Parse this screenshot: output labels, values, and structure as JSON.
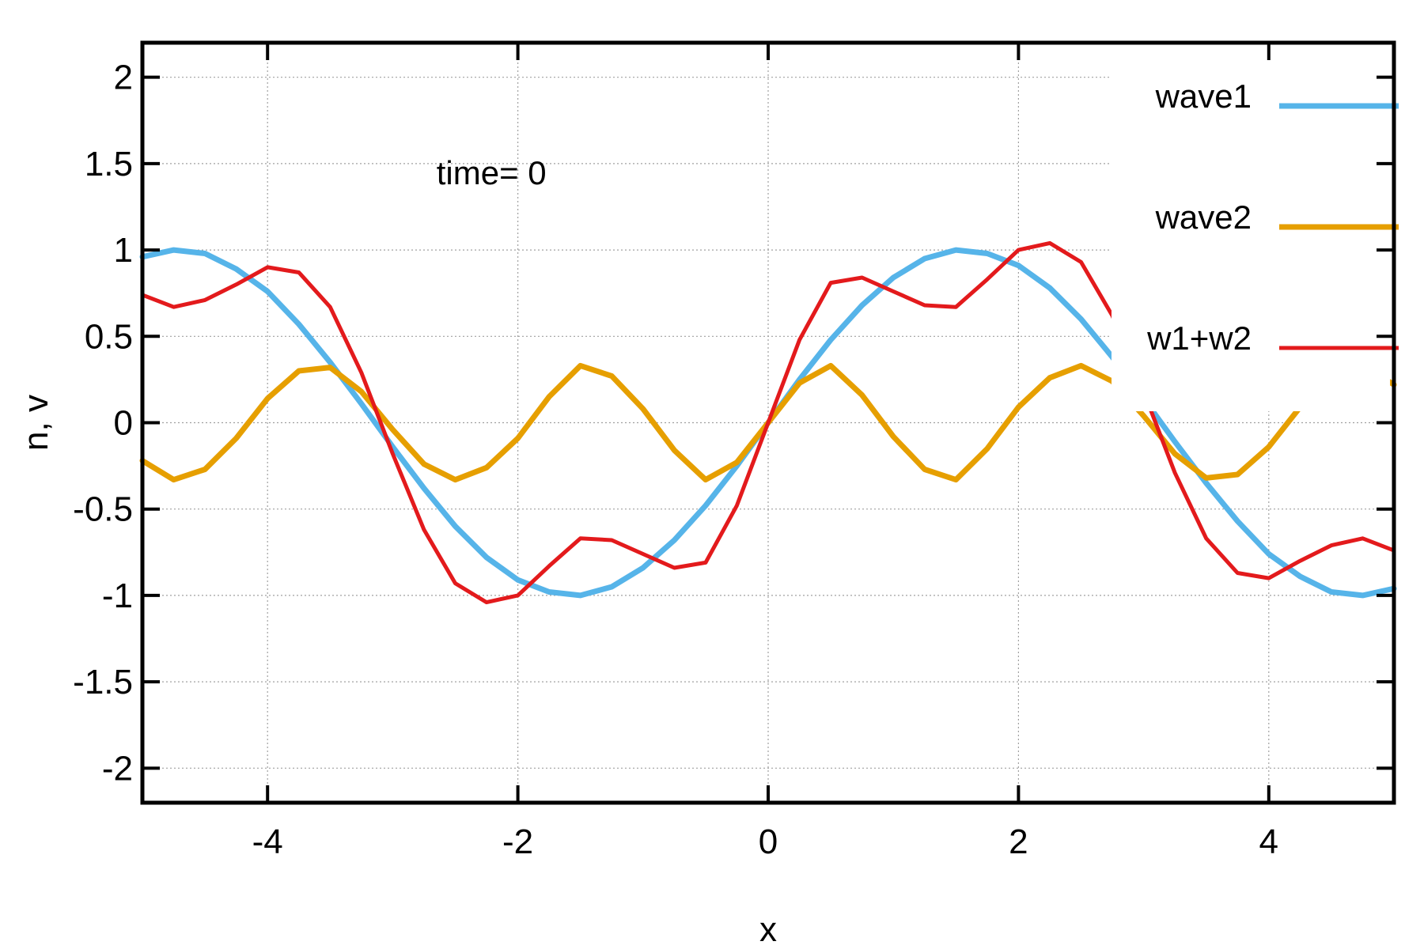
{
  "chart_data": {
    "type": "line",
    "xlabel": "x",
    "ylabel": "n, v",
    "xlim": [
      -5,
      5
    ],
    "ylim": [
      -2.2,
      2.2
    ],
    "xticks": [
      -4,
      -2,
      0,
      2,
      4
    ],
    "yticks": [
      2,
      1.5,
      1,
      0.5,
      0,
      -0.5,
      -1,
      -1.5,
      -2
    ],
    "grid": true,
    "legend_position": "top-right",
    "annotation": {
      "text": "time=  0",
      "x": -2.65,
      "y": 1.38
    },
    "x": [
      -5,
      -4.75,
      -4.5,
      -4.25,
      -4,
      -3.75,
      -3.5,
      -3.25,
      -3,
      -2.75,
      -2.5,
      -2.25,
      -2,
      -1.75,
      -1.5,
      -1.25,
      -1,
      -0.75,
      -0.5,
      -0.25,
      0,
      0.25,
      0.5,
      0.75,
      1,
      1.25,
      1.5,
      1.75,
      2,
      2.25,
      2.5,
      2.75,
      3,
      3.25,
      3.5,
      3.75,
      4,
      4.25,
      4.5,
      4.75,
      5
    ],
    "series": [
      {
        "name": "wave1",
        "color": "#56b4e9",
        "values": [
          0.96,
          1.0,
          0.98,
          0.89,
          0.76,
          0.57,
          0.35,
          0.11,
          -0.14,
          -0.38,
          -0.6,
          -0.78,
          -0.91,
          -0.98,
          -1.0,
          -0.95,
          -0.84,
          -0.68,
          -0.48,
          -0.25,
          0.0,
          0.25,
          0.48,
          0.68,
          0.84,
          0.95,
          1.0,
          0.98,
          0.91,
          0.78,
          0.6,
          0.38,
          0.14,
          -0.11,
          -0.35,
          -0.57,
          -0.76,
          -0.89,
          -0.98,
          -1.0,
          -0.96
        ]
      },
      {
        "name": "wave2",
        "color": "#e69f00",
        "values": [
          -0.22,
          -0.33,
          -0.27,
          -0.09,
          0.14,
          0.3,
          0.32,
          0.18,
          -0.04,
          -0.24,
          -0.33,
          -0.26,
          -0.09,
          0.15,
          0.33,
          0.27,
          0.08,
          -0.16,
          -0.33,
          -0.23,
          0.0,
          0.23,
          0.33,
          0.16,
          -0.08,
          -0.27,
          -0.33,
          -0.15,
          0.09,
          0.26,
          0.33,
          0.24,
          0.04,
          -0.18,
          -0.32,
          -0.3,
          -0.14,
          0.09,
          0.27,
          0.33,
          0.22
        ]
      },
      {
        "name": "w1+w2",
        "color": "#e31a1c",
        "values": [
          0.74,
          0.67,
          0.71,
          0.8,
          0.9,
          0.87,
          0.67,
          0.29,
          -0.18,
          -0.62,
          -0.93,
          -1.04,
          -1.0,
          -0.83,
          -0.67,
          -0.68,
          -0.76,
          -0.84,
          -0.81,
          -0.48,
          0.0,
          0.48,
          0.81,
          0.84,
          0.76,
          0.68,
          0.67,
          0.83,
          1.0,
          1.04,
          0.93,
          0.62,
          0.18,
          -0.29,
          -0.67,
          -0.87,
          -0.9,
          -0.8,
          -0.71,
          -0.67,
          -0.74
        ]
      }
    ]
  }
}
